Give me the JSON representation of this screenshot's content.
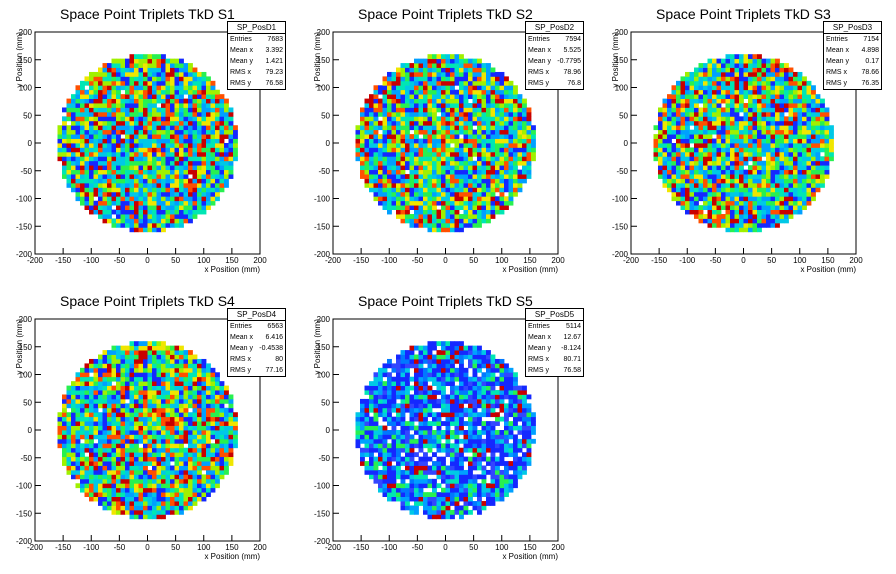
{
  "chart_data": [
    {
      "type": "heatmap",
      "title": "Space Point Triplets TkD S1",
      "hist_name": "SP_PosD1",
      "xlabel": "x Position (mm)",
      "ylabel": "y Position (mm)",
      "xlim": [
        -200,
        200
      ],
      "ylim": [
        -200,
        200
      ],
      "xticks": [
        -200,
        -150,
        -100,
        -50,
        0,
        50,
        100,
        150,
        200
      ],
      "yticks": [
        -200,
        -150,
        -100,
        -50,
        0,
        50,
        100,
        150,
        200
      ],
      "radius": 160,
      "density": "high",
      "stats": [
        {
          "label": "Entries",
          "value": "7683"
        },
        {
          "label": "Mean x",
          "value": "3.392"
        },
        {
          "label": "Mean y",
          "value": "1.421"
        },
        {
          "label": "RMS x",
          "value": "79.23"
        },
        {
          "label": "RMS y",
          "value": "76.58"
        }
      ]
    },
    {
      "type": "heatmap",
      "title": "Space Point Triplets TkD S2",
      "hist_name": "SP_PosD2",
      "xlabel": "x Position (mm)",
      "ylabel": "y Position (mm)",
      "xlim": [
        -200,
        200
      ],
      "ylim": [
        -200,
        200
      ],
      "xticks": [
        -200,
        -150,
        -100,
        -50,
        0,
        50,
        100,
        150,
        200
      ],
      "yticks": [
        -200,
        -150,
        -100,
        -50,
        0,
        50,
        100,
        150,
        200
      ],
      "radius": 160,
      "density": "high",
      "stats": [
        {
          "label": "Entries",
          "value": "7594"
        },
        {
          "label": "Mean x",
          "value": "5.525"
        },
        {
          "label": "Mean y",
          "value": "-0.7795"
        },
        {
          "label": "RMS x",
          "value": "78.96"
        },
        {
          "label": "RMS y",
          "value": "76.8"
        }
      ]
    },
    {
      "type": "heatmap",
      "title": "Space Point Triplets TkD S3",
      "hist_name": "SP_PosD3",
      "xlabel": "x Position (mm)",
      "ylabel": "y Position (mm)",
      "xlim": [
        -200,
        200
      ],
      "ylim": [
        -200,
        200
      ],
      "xticks": [
        -200,
        -150,
        -100,
        -50,
        0,
        50,
        100,
        150,
        200
      ],
      "yticks": [
        -200,
        -150,
        -100,
        -50,
        0,
        50,
        100,
        150,
        200
      ],
      "radius": 160,
      "density": "high",
      "stats": [
        {
          "label": "Entries",
          "value": "7154"
        },
        {
          "label": "Mean x",
          "value": "4.898"
        },
        {
          "label": "Mean y",
          "value": "0.17"
        },
        {
          "label": "RMS x",
          "value": "78.66"
        },
        {
          "label": "RMS y",
          "value": "76.35"
        }
      ]
    },
    {
      "type": "heatmap",
      "title": "Space Point Triplets TkD S4",
      "hist_name": "SP_PosD4",
      "xlabel": "x Position (mm)",
      "ylabel": "y Position (mm)",
      "xlim": [
        -200,
        200
      ],
      "ylim": [
        -200,
        200
      ],
      "xticks": [
        -200,
        -150,
        -100,
        -50,
        0,
        50,
        100,
        150,
        200
      ],
      "yticks": [
        -200,
        -150,
        -100,
        -50,
        0,
        50,
        100,
        150,
        200
      ],
      "radius": 160,
      "density": "high",
      "stats": [
        {
          "label": "Entries",
          "value": "6563"
        },
        {
          "label": "Mean x",
          "value": "6.416"
        },
        {
          "label": "Mean y",
          "value": "-0.4538"
        },
        {
          "label": "RMS x",
          "value": "80"
        },
        {
          "label": "RMS y",
          "value": "77.16"
        }
      ]
    },
    {
      "type": "heatmap",
      "title": "Space Point Triplets TkD S5",
      "hist_name": "SP_PosD5",
      "xlabel": "x Position (mm)",
      "ylabel": "y Position (mm)",
      "xlim": [
        -200,
        200
      ],
      "ylim": [
        -200,
        200
      ],
      "xticks": [
        -200,
        -150,
        -100,
        -50,
        0,
        50,
        100,
        150,
        200
      ],
      "yticks": [
        -200,
        -150,
        -100,
        -50,
        0,
        50,
        100,
        150,
        200
      ],
      "radius": 160,
      "density": "low",
      "stats": [
        {
          "label": "Entries",
          "value": "5114"
        },
        {
          "label": "Mean x",
          "value": "12.67"
        },
        {
          "label": "Mean y",
          "value": "-8.124"
        },
        {
          "label": "RMS x",
          "value": "80.71"
        },
        {
          "label": "RMS y",
          "value": "76.58"
        }
      ]
    }
  ]
}
